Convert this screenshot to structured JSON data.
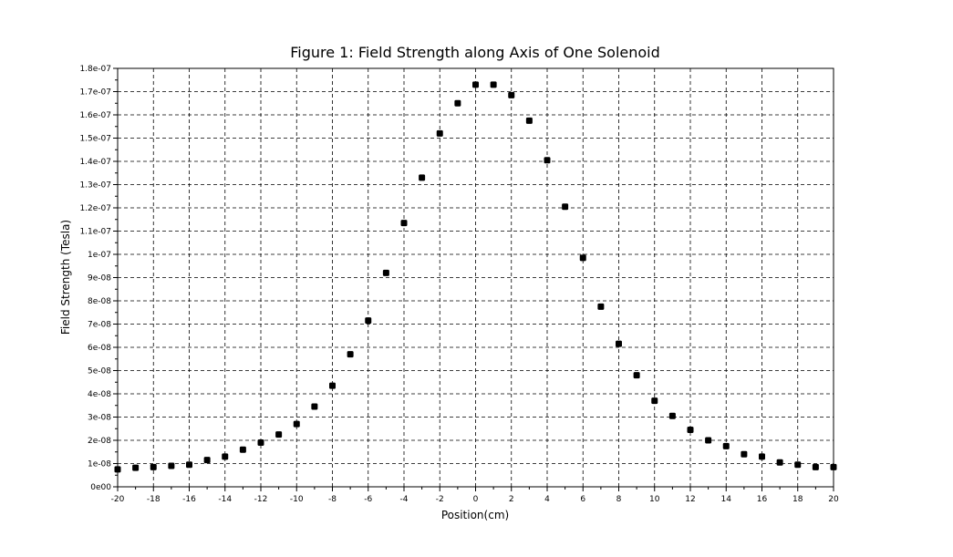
{
  "chart_data": {
    "type": "scatter",
    "title": "Figure 1: Field Strength along Axis of One Solenoid",
    "xlabel": "Position(cm)",
    "ylabel": "Field Strength (Tesla)",
    "xlim": [
      -20,
      20
    ],
    "ylim": [
      0,
      1.8e-07
    ],
    "grid": true,
    "marker_color": "#000000",
    "x_ticks": [
      -20,
      -18,
      -16,
      -14,
      -12,
      -10,
      -8,
      -6,
      -4,
      -2,
      0,
      2,
      4,
      6,
      8,
      10,
      12,
      14,
      16,
      18,
      20
    ],
    "x_tick_labels": [
      "-20",
      "-18",
      "-16",
      "-14",
      "-12",
      "-10",
      "-8",
      "-6",
      "-4",
      "-2",
      "0",
      "2",
      "4",
      "6",
      "8",
      "10",
      "12",
      "14",
      "16",
      "18",
      "20"
    ],
    "y_ticks": [
      0,
      1e-08,
      2e-08,
      3e-08,
      4e-08,
      5e-08,
      6e-08,
      7e-08,
      8e-08,
      9e-08,
      1e-07,
      1.1e-07,
      1.2e-07,
      1.3e-07,
      1.4e-07,
      1.5e-07,
      1.6e-07,
      1.7e-07,
      1.8e-07
    ],
    "y_tick_labels": [
      "0e00",
      "1e-08",
      "2e-08",
      "3e-08",
      "4e-08",
      "5e-08",
      "6e-08",
      "7e-08",
      "8e-08",
      "9e-08",
      "1e-07",
      "1.1e-07",
      "1.2e-07",
      "1.3e-07",
      "1.4e-07",
      "1.5e-07",
      "1.6e-07",
      "1.7e-07",
      "1.8e-07"
    ],
    "x": [
      -20,
      -19,
      -18,
      -17,
      -16,
      -15,
      -14,
      -13,
      -12,
      -11,
      -10,
      -9,
      -8,
      -7,
      -6,
      -5,
      -4,
      -3,
      -2,
      -1,
      0,
      1,
      2,
      3,
      4,
      5,
      6,
      7,
      8,
      9,
      10,
      11,
      12,
      13,
      14,
      15,
      16,
      17,
      18,
      19,
      20
    ],
    "y": [
      7.5e-09,
      8.2e-09,
      8.5e-09,
      9e-09,
      9.5e-09,
      1.15e-08,
      1.3e-08,
      1.6e-08,
      1.9e-08,
      2.25e-08,
      2.7e-08,
      3.45e-08,
      4.35e-08,
      5.7e-08,
      7.15e-08,
      9.2e-08,
      1.135e-07,
      1.33e-07,
      1.52e-07,
      1.65e-07,
      1.73e-07,
      1.73e-07,
      1.685e-07,
      1.575e-07,
      1.405e-07,
      1.205e-07,
      9.85e-08,
      7.75e-08,
      6.15e-08,
      4.8e-08,
      3.7e-08,
      3.05e-08,
      2.45e-08,
      2e-08,
      1.75e-08,
      1.4e-08,
      1.3e-08,
      1.05e-08,
      9.5e-09,
      8.5e-09,
      8.5e-09
    ]
  }
}
